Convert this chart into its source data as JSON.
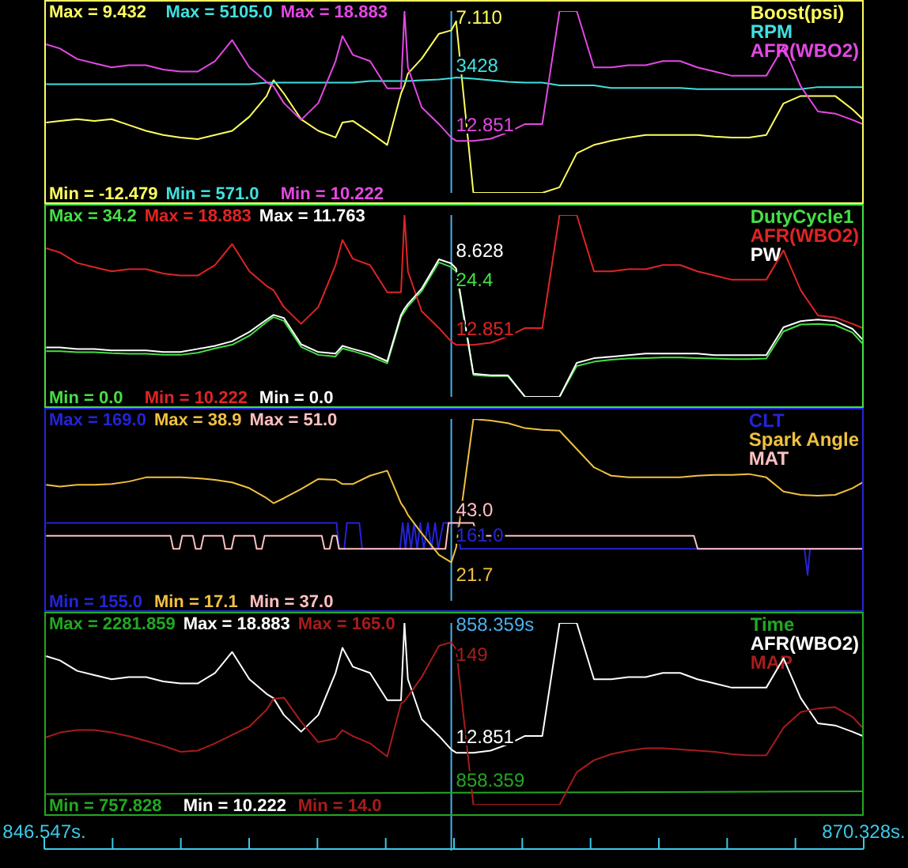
{
  "chart_data": [
    {
      "type": "line",
      "x": [
        846.6,
        847.0,
        847.5,
        848.0,
        848.5,
        849.0,
        849.5,
        850.0,
        850.5,
        851.0,
        851.5,
        852.0,
        852.5,
        853.0,
        853.2,
        853.5,
        854.0,
        854.5,
        855.0,
        855.2,
        855.5,
        856.0,
        856.5,
        856.9,
        857.0,
        857.1,
        857.5,
        858.0,
        858.359,
        858.5,
        859.0,
        859.5,
        860.0,
        860.5,
        861.0,
        861.5,
        862.0,
        862.5,
        863.0,
        863.5,
        864.0,
        864.5,
        865.0,
        865.5,
        866.0,
        866.5,
        867.0,
        867.5,
        868.0,
        868.5,
        869.0,
        869.5,
        870.0,
        870.3
      ],
      "xlim": [
        846.547,
        870.328
      ],
      "tick_labels": "y",
      "legend": "top right",
      "ylim": [
        -12.479,
        9.432
      ],
      "yticks": [
        {
          "value": -12.479,
          "label": "Min = -12.479"
        },
        {
          "value": 9.432,
          "label": "Max = 9.432"
        }
      ],
      "y2lim": [
        571,
        5105
      ],
      "y2ticks": [
        {
          "value": 571,
          "label": "Min = 571.0"
        },
        {
          "value": 5105,
          "label": "Max = 5105.0"
        }
      ],
      "y3lim": [
        10.222,
        18.883
      ],
      "y3ticks": [
        {
          "value": 10.222,
          "label": "Min = 10.222"
        },
        {
          "value": 18.883,
          "label": "Max = 18.883"
        }
      ],
      "ref_lines": [
        {
          "axis": "x",
          "value": 858.359,
          "color": "#48b0ec"
        }
      ],
      "series": [
        {
          "name": "Boost(psi)",
          "color": "#ffff60",
          "values": [
            -4.0,
            -3.8,
            -3.6,
            -3.8,
            -3.6,
            -4.3,
            -5.0,
            -5.5,
            -5.8,
            -6.0,
            -5.5,
            -5.0,
            -3.3,
            -0.8,
            1.1,
            -0.5,
            -3.6,
            -5.0,
            -5.8,
            -4.0,
            -3.8,
            -5.2,
            -6.7,
            -0.5,
            0.5,
            1.9,
            3.7,
            6.7,
            7.11,
            8.2,
            -12.479,
            -12.479,
            -12.479,
            -12.479,
            -12.479,
            -11.8,
            -7.7,
            -6.7,
            -6.2,
            -5.8,
            -5.5,
            -5.5,
            -5.5,
            -5.5,
            -5.7,
            -5.8,
            -5.8,
            -5.5,
            -1.7,
            -0.8,
            -0.8,
            -0.8,
            -2.4,
            -3.6
          ],
          "value_labels": [
            null,
            null,
            null,
            null,
            null,
            null,
            null,
            null,
            null,
            null,
            null,
            null,
            null,
            null,
            null,
            null,
            null,
            null,
            null,
            null,
            null,
            null,
            null,
            null,
            null,
            null,
            null,
            null,
            "7.110",
            null,
            null,
            null,
            null,
            null,
            null,
            null,
            null,
            null,
            null,
            null,
            null,
            null,
            null,
            null,
            null,
            null,
            null,
            null,
            null,
            null,
            null,
            null,
            null,
            null
          ]
        },
        {
          "name": "RPM",
          "color": "#40e0e0",
          "axis": "y2",
          "values": [
            3280,
            3280,
            3280,
            3280,
            3280,
            3280,
            3280,
            3280,
            3280,
            3280,
            3280,
            3280,
            3280,
            3320,
            3320,
            3320,
            3320,
            3320,
            3320,
            3320,
            3320,
            3360,
            3360,
            3360,
            3360,
            3360,
            3380,
            3400,
            3428,
            3450,
            3420,
            3380,
            3340,
            3320,
            3320,
            3250,
            3250,
            3250,
            3190,
            3190,
            3190,
            3190,
            3190,
            3160,
            3160,
            3160,
            3160,
            3160,
            3160,
            3160,
            3210,
            3210,
            3210,
            3210
          ],
          "value_labels": [
            null,
            null,
            null,
            null,
            null,
            null,
            null,
            null,
            null,
            null,
            null,
            null,
            null,
            null,
            null,
            null,
            null,
            null,
            null,
            null,
            null,
            null,
            null,
            null,
            null,
            null,
            null,
            null,
            "3428",
            null,
            null,
            null,
            null,
            null,
            null,
            null,
            null,
            null,
            null,
            null,
            null,
            null,
            null,
            null,
            null,
            null,
            null,
            null,
            null,
            null,
            null,
            null,
            null,
            null
          ]
        },
        {
          "name": "AFR(WBO2)",
          "color": "#e448e4",
          "axis": "y3",
          "values": [
            17.3,
            17.1,
            16.6,
            16.4,
            16.2,
            16.3,
            16.3,
            16.1,
            16.0,
            16.0,
            16.5,
            17.5,
            16.2,
            15.5,
            15.3,
            14.5,
            13.7,
            14.5,
            16.5,
            17.7,
            16.8,
            16.5,
            15.2,
            15.2,
            18.88,
            16.2,
            14.3,
            13.5,
            12.851,
            12.7,
            12.7,
            12.8,
            13.1,
            13.5,
            13.5,
            18.88,
            18.88,
            16.2,
            16.2,
            16.3,
            16.3,
            16.5,
            16.5,
            16.2,
            16.0,
            15.8,
            15.8,
            15.8,
            17.2,
            15.3,
            14.1,
            14.0,
            13.7,
            13.5
          ],
          "value_labels": [
            null,
            null,
            null,
            null,
            null,
            null,
            null,
            null,
            null,
            null,
            null,
            null,
            null,
            null,
            null,
            null,
            null,
            null,
            null,
            null,
            null,
            null,
            null,
            null,
            null,
            null,
            null,
            null,
            "12.851",
            null,
            null,
            null,
            null,
            null,
            null,
            null,
            null,
            null,
            null,
            null,
            null,
            null,
            null,
            null,
            null,
            null,
            null,
            null,
            null,
            null,
            null,
            null,
            null,
            null
          ]
        }
      ]
    },
    {
      "type": "line",
      "x": [
        846.6,
        847.0,
        847.5,
        848.0,
        848.5,
        849.0,
        849.5,
        850.0,
        850.5,
        851.0,
        851.5,
        852.0,
        852.5,
        853.0,
        853.2,
        853.5,
        854.0,
        854.5,
        855.0,
        855.2,
        855.5,
        856.0,
        856.5,
        856.9,
        857.0,
        857.1,
        857.5,
        858.0,
        858.359,
        858.5,
        859.0,
        859.5,
        860.0,
        860.5,
        861.0,
        861.5,
        862.0,
        862.5,
        863.0,
        863.5,
        864.0,
        864.5,
        865.0,
        865.5,
        866.0,
        866.5,
        867.0,
        867.5,
        868.0,
        868.5,
        869.0,
        869.5,
        870.0,
        870.3
      ],
      "xlim": [
        846.547,
        870.328
      ],
      "tick_labels": "y",
      "legend": "top right",
      "ylim": [
        0,
        34.2
      ],
      "yticks": [
        {
          "value": 0,
          "label": "Min = 0.0"
        },
        {
          "value": 34.2,
          "label": "Max = 34.2"
        }
      ],
      "y2lim": [
        10.222,
        18.883
      ],
      "y2ticks": [
        {
          "value": 10.222,
          "label": "Min = 10.222"
        },
        {
          "value": 18.883,
          "label": "Max = 18.883"
        }
      ],
      "y3lim": [
        0,
        11.763
      ],
      "y3ticks": [
        {
          "value": 0,
          "label": "Min = 0.0"
        },
        {
          "value": 11.763,
          "label": "Max = 11.763"
        }
      ],
      "ref_lines": [
        {
          "axis": "x",
          "value": 858.359,
          "color": "#48b0ec"
        }
      ],
      "series": [
        {
          "name": "DutyCycle1",
          "color": "#44e044",
          "values": [
            8.6,
            8.6,
            8.4,
            8.4,
            8.2,
            8.1,
            8.1,
            7.9,
            7.9,
            8.3,
            9.1,
            9.8,
            11.5,
            14.1,
            15.0,
            14.3,
            9.4,
            7.9,
            7.6,
            9.1,
            8.6,
            7.6,
            6.3,
            15.0,
            16.0,
            17.0,
            19.9,
            25.3,
            24.4,
            23.6,
            4.1,
            3.9,
            3.9,
            0,
            0,
            0,
            5.8,
            6.6,
            7.0,
            7.2,
            7.3,
            7.4,
            7.4,
            7.3,
            7.2,
            7.1,
            7.1,
            7.2,
            12.3,
            13.6,
            13.7,
            13.5,
            12.1,
            10.0
          ],
          "value_labels": [
            null,
            null,
            null,
            null,
            null,
            null,
            null,
            null,
            null,
            null,
            null,
            null,
            null,
            null,
            null,
            null,
            null,
            null,
            null,
            null,
            null,
            null,
            null,
            null,
            null,
            null,
            null,
            null,
            "24.4",
            null,
            null,
            null,
            null,
            null,
            null,
            null,
            null,
            null,
            null,
            null,
            null,
            null,
            null,
            null,
            null,
            null,
            null,
            null,
            null,
            null,
            null,
            null,
            null,
            null
          ]
        },
        {
          "name": "AFR(WBO2)",
          "color": "#e02424",
          "axis": "y2",
          "values": [
            17.3,
            17.1,
            16.6,
            16.4,
            16.2,
            16.3,
            16.3,
            16.1,
            16.0,
            16.0,
            16.5,
            17.5,
            16.2,
            15.5,
            15.3,
            14.5,
            13.7,
            14.5,
            16.5,
            17.7,
            16.8,
            16.5,
            15.2,
            15.2,
            18.88,
            16.2,
            14.3,
            13.5,
            12.851,
            12.7,
            12.7,
            12.8,
            13.1,
            13.5,
            13.5,
            18.88,
            18.88,
            16.2,
            16.2,
            16.3,
            16.3,
            16.5,
            16.5,
            16.2,
            16.0,
            15.8,
            15.8,
            15.8,
            17.2,
            15.3,
            14.1,
            14.0,
            13.7,
            13.5
          ],
          "value_labels": [
            null,
            null,
            null,
            null,
            null,
            null,
            null,
            null,
            null,
            null,
            null,
            null,
            null,
            null,
            null,
            null,
            null,
            null,
            null,
            null,
            null,
            null,
            null,
            null,
            null,
            null,
            null,
            null,
            "12.851",
            null,
            null,
            null,
            null,
            null,
            null,
            null,
            null,
            null,
            null,
            null,
            null,
            null,
            null,
            null,
            null,
            null,
            null,
            null,
            null,
            null,
            null,
            null,
            null,
            null
          ]
        },
        {
          "name": "PW",
          "color": "#ffffff",
          "axis": "y3",
          "values": [
            3.2,
            3.2,
            3.1,
            3.1,
            3.0,
            3.0,
            3.0,
            2.9,
            2.9,
            3.1,
            3.3,
            3.6,
            4.2,
            5.0,
            5.3,
            5.1,
            3.4,
            2.9,
            2.8,
            3.3,
            3.1,
            2.8,
            2.3,
            5.3,
            5.7,
            6.0,
            7.0,
            8.9,
            8.628,
            8.3,
            1.5,
            1.4,
            1.4,
            0,
            0,
            0,
            2.2,
            2.5,
            2.6,
            2.7,
            2.8,
            2.8,
            2.8,
            2.8,
            2.7,
            2.7,
            2.7,
            2.7,
            4.5,
            4.9,
            5.0,
            4.9,
            4.4,
            3.7
          ],
          "value_labels": [
            null,
            null,
            null,
            null,
            null,
            null,
            null,
            null,
            null,
            null,
            null,
            null,
            null,
            null,
            null,
            null,
            null,
            null,
            null,
            null,
            null,
            null,
            null,
            null,
            null,
            null,
            null,
            null,
            "8.628",
            null,
            null,
            null,
            null,
            null,
            null,
            null,
            null,
            null,
            null,
            null,
            null,
            null,
            null,
            null,
            null,
            null,
            null,
            null,
            null,
            null,
            null,
            null,
            null,
            null
          ]
        }
      ]
    },
    {
      "type": "line",
      "x": [
        846.6,
        847.0,
        847.5,
        848.0,
        848.5,
        849.0,
        849.5,
        850.0,
        850.5,
        851.0,
        851.5,
        852.0,
        852.5,
        853.0,
        853.2,
        853.5,
        854.0,
        854.5,
        855.0,
        855.2,
        855.5,
        856.0,
        856.5,
        856.9,
        857.0,
        857.1,
        857.5,
        858.0,
        858.359,
        858.5,
        859.0,
        859.5,
        860.0,
        860.5,
        861.0,
        861.5,
        862.0,
        862.5,
        863.0,
        863.5,
        864.0,
        864.5,
        865.0,
        865.5,
        866.0,
        866.5,
        867.0,
        867.5,
        868.0,
        868.5,
        869.0,
        869.5,
        870.0,
        870.3
      ],
      "xlim": [
        846.547,
        870.328
      ],
      "tick_labels": "y",
      "legend": "top right",
      "ylim": [
        155,
        169
      ],
      "yticks": [
        {
          "value": 155,
          "label": "Min = 155.0"
        },
        {
          "value": 169,
          "label": "Max = 169.0"
        }
      ],
      "y2lim": [
        17.1,
        38.9
      ],
      "y2ticks": [
        {
          "value": 17.1,
          "label": "Min = 17.1"
        },
        {
          "value": 38.9,
          "label": "Max = 38.9"
        }
      ],
      "y3lim": [
        37,
        51
      ],
      "y3ticks": [
        {
          "value": 37,
          "label": "Min = 37.0"
        },
        {
          "value": 51,
          "label": "Max = 51.0"
        }
      ],
      "ref_lines": [
        {
          "axis": "x",
          "value": 858.359,
          "color": "#48b0ec"
        }
      ],
      "series": [
        {
          "name": "CLT",
          "color": "#2424d8",
          "x": [
            846.6,
            855.03,
            855.1,
            855.25,
            855.33,
            855.69,
            855.77,
            856.87,
            856.95,
            857.03,
            857.1,
            857.19,
            857.28,
            857.37,
            857.46,
            857.56,
            857.68,
            857.78,
            857.89,
            857.98,
            858.13,
            858.359,
            858.54,
            858.62,
            868.61,
            868.7,
            868.77,
            870.3
          ],
          "values": [
            161,
            161,
            159,
            159,
            161,
            161,
            159,
            159,
            161,
            159,
            161,
            159,
            161,
            159,
            161,
            159,
            161,
            159,
            161,
            159,
            161,
            161,
            161,
            159,
            159,
            157,
            159,
            159
          ],
          "value_labels": [
            null,
            null,
            null,
            null,
            null,
            null,
            null,
            null,
            null,
            null,
            null,
            null,
            null,
            null,
            null,
            null,
            null,
            null,
            null,
            null,
            null,
            "161.0",
            null,
            null,
            null,
            null,
            null,
            null
          ]
        },
        {
          "name": "Spark Angle",
          "color": "#f0c040",
          "axis": "y2",
          "values": [
            31.0,
            30.8,
            31.0,
            31.0,
            31.1,
            31.4,
            31.9,
            31.9,
            31.9,
            31.8,
            31.6,
            31.3,
            30.6,
            29.4,
            28.8,
            29.4,
            30.5,
            31.7,
            31.6,
            31.1,
            31.1,
            32.1,
            32.7,
            28.8,
            28.2,
            27.4,
            25.2,
            22.6,
            21.7,
            23.5,
            38.9,
            38.7,
            38.4,
            37.8,
            37.6,
            37.5,
            35.3,
            33.1,
            32.1,
            31.9,
            31.9,
            31.9,
            31.9,
            32.1,
            32.2,
            32.2,
            32.3,
            31.9,
            30.2,
            29.8,
            29.7,
            29.8,
            30.6,
            31.3
          ],
          "value_labels": [
            null,
            null,
            null,
            null,
            null,
            null,
            null,
            null,
            null,
            null,
            null,
            null,
            null,
            null,
            null,
            null,
            null,
            null,
            null,
            null,
            null,
            null,
            null,
            null,
            null,
            null,
            null,
            null,
            "21.7",
            null,
            null,
            null,
            null,
            null,
            null,
            null,
            null,
            null,
            null,
            null,
            null,
            null,
            null,
            null,
            null,
            null,
            null,
            null,
            null,
            null,
            null,
            null,
            null,
            null
          ]
        },
        {
          "name": "MAT",
          "color": "#ffc0c0",
          "axis": "y3",
          "x": [
            846.6,
            850.21,
            850.29,
            850.47,
            850.55,
            850.86,
            850.94,
            851.09,
            851.17,
            851.73,
            851.8,
            851.98,
            852.06,
            852.64,
            852.71,
            852.86,
            852.94,
            854.6,
            854.68,
            854.83,
            854.91,
            855.03,
            855.1,
            858.19,
            858.28,
            858.359,
            859.0,
            859.1,
            865.4,
            865.51,
            870.3
          ],
          "values": [
            42,
            42,
            41,
            41,
            42,
            42,
            41,
            41,
            42,
            42,
            41,
            41,
            42,
            42,
            41,
            41,
            42,
            42,
            41,
            41,
            42,
            42,
            41,
            41,
            43,
            43,
            43,
            42,
            42,
            41,
            41
          ],
          "value_labels": [
            null,
            null,
            null,
            null,
            null,
            null,
            null,
            null,
            null,
            null,
            null,
            null,
            null,
            null,
            null,
            null,
            null,
            null,
            null,
            null,
            null,
            null,
            null,
            null,
            null,
            "43.0",
            null,
            null,
            null,
            null,
            null
          ]
        }
      ]
    },
    {
      "type": "line",
      "x": [
        846.6,
        847.0,
        847.5,
        848.0,
        848.5,
        849.0,
        849.5,
        850.0,
        850.5,
        851.0,
        851.5,
        852.0,
        852.5,
        853.0,
        853.2,
        853.5,
        854.0,
        854.5,
        855.0,
        855.2,
        855.5,
        856.0,
        856.5,
        856.9,
        857.0,
        857.1,
        857.5,
        858.0,
        858.359,
        858.5,
        859.0,
        859.5,
        860.0,
        860.5,
        861.0,
        861.5,
        862.0,
        862.5,
        863.0,
        863.5,
        864.0,
        864.5,
        865.0,
        865.5,
        866.0,
        866.5,
        867.0,
        867.5,
        868.0,
        868.5,
        869.0,
        869.5,
        870.0,
        870.3
      ],
      "xlim": [
        846.547,
        870.328
      ],
      "legend": "top right",
      "xticks": [
        {
          "value": 846.547,
          "label": "846.547s."
        },
        {
          "value": 848.529,
          "label": null
        },
        {
          "value": 850.51,
          "label": null
        },
        {
          "value": 852.492,
          "label": null
        },
        {
          "value": 854.474,
          "label": null
        },
        {
          "value": 856.456,
          "label": null
        },
        {
          "value": 858.438,
          "label": null
        },
        {
          "value": 860.419,
          "label": null
        },
        {
          "value": 862.401,
          "label": null
        },
        {
          "value": 864.383,
          "label": null
        },
        {
          "value": 866.365,
          "label": null
        },
        {
          "value": 868.346,
          "label": null
        },
        {
          "value": 870.328,
          "label": "870.328s."
        }
      ],
      "ylim": [
        757.828,
        2281.859
      ],
      "yticks": [
        {
          "value": 757.828,
          "label": "Min = 757.828"
        },
        {
          "value": 2281.859,
          "label": "Max = 2281.859"
        }
      ],
      "y2lim": [
        10.222,
        18.883
      ],
      "y2ticks": [
        {
          "value": 10.222,
          "label": "Min = 10.222"
        },
        {
          "value": 18.883,
          "label": "Max = 18.883"
        }
      ],
      "y3lim": [
        14,
        165
      ],
      "y3ticks": [
        {
          "value": 14,
          "label": "Min = 14.0"
        },
        {
          "value": 165,
          "label": "Max = 165.0"
        }
      ],
      "ref_lines": [
        {
          "axis": "x",
          "value": 858.359,
          "color": "#48b0ec",
          "label": "858.359s"
        }
      ],
      "series": [
        {
          "name": "Time",
          "color": "#22a822",
          "x": [
            846.6,
            858.359,
            870.3
          ],
          "values": [
            847,
            858.359,
            870
          ],
          "value_labels": [
            null,
            "858.359",
            null
          ]
        },
        {
          "name": "AFR(WBO2)",
          "color": "#ffffff",
          "axis": "y2",
          "values": [
            17.3,
            17.1,
            16.6,
            16.4,
            16.2,
            16.3,
            16.3,
            16.1,
            16.0,
            16.0,
            16.5,
            17.5,
            16.2,
            15.5,
            15.3,
            14.5,
            13.7,
            14.5,
            16.5,
            17.7,
            16.8,
            16.5,
            15.2,
            15.2,
            18.88,
            16.2,
            14.3,
            13.5,
            12.851,
            12.7,
            12.7,
            12.8,
            13.1,
            13.5,
            13.5,
            18.88,
            18.88,
            16.2,
            16.2,
            16.3,
            16.3,
            16.5,
            16.5,
            16.2,
            16.0,
            15.8,
            15.8,
            15.8,
            17.2,
            15.3,
            14.1,
            14.0,
            13.7,
            13.5
          ],
          "value_labels": [
            null,
            null,
            null,
            null,
            null,
            null,
            null,
            null,
            null,
            null,
            null,
            null,
            null,
            null,
            null,
            null,
            null,
            null,
            null,
            null,
            null,
            null,
            null,
            null,
            null,
            null,
            null,
            null,
            "12.851",
            null,
            null,
            null,
            null,
            null,
            null,
            null,
            null,
            null,
            null,
            null,
            null,
            null,
            null,
            null,
            null,
            null,
            null,
            null,
            null,
            null,
            null,
            null,
            null,
            null
          ]
        },
        {
          "name": "MAP",
          "color": "#a81c1c",
          "axis": "y3",
          "values": [
            70,
            74,
            76,
            76,
            74,
            71,
            67,
            63,
            58,
            59,
            65,
            72,
            79,
            93,
            102,
            103,
            83,
            66,
            69,
            76,
            71,
            65,
            54,
            98,
            100,
            104,
            120,
            146,
            149,
            143,
            14,
            14,
            14,
            14,
            14,
            14,
            41,
            51,
            56,
            59,
            61,
            61,
            60,
            59,
            58,
            56,
            55,
            55,
            78,
            91,
            94,
            95,
            87,
            78
          ],
          "value_labels": [
            null,
            null,
            null,
            null,
            null,
            null,
            null,
            null,
            null,
            null,
            null,
            null,
            null,
            null,
            null,
            null,
            null,
            null,
            null,
            null,
            null,
            null,
            null,
            null,
            null,
            null,
            null,
            null,
            "149",
            null,
            null,
            null,
            null,
            null,
            null,
            null,
            null,
            null,
            null,
            null,
            null,
            null,
            null,
            null,
            null,
            null,
            null,
            null,
            null,
            null,
            null,
            null,
            null,
            null
          ]
        }
      ]
    }
  ]
}
